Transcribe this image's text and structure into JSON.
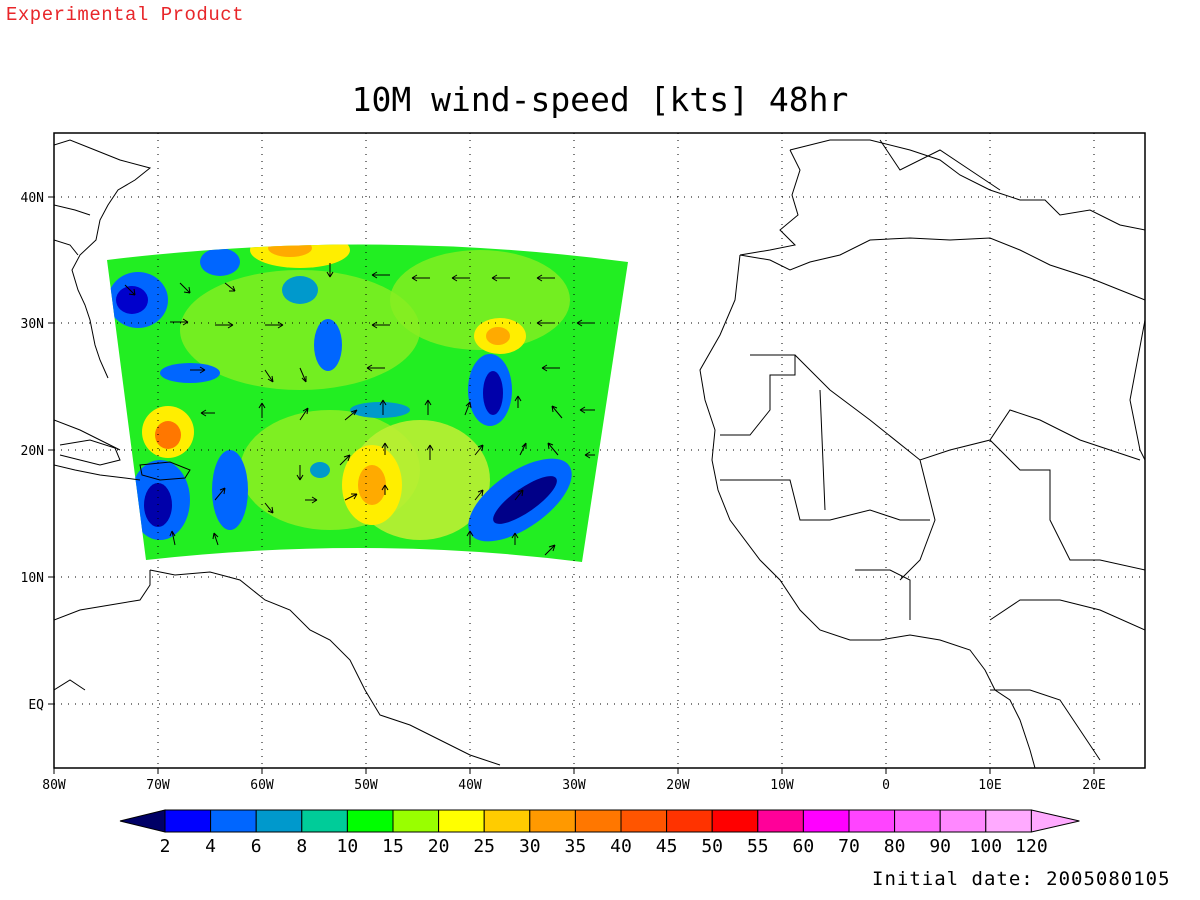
{
  "header": {
    "product_label": "Experimental Product",
    "title": "10M wind-speed [kts] 48hr"
  },
  "footer": {
    "initial_date": "Initial date: 2005080105"
  },
  "map": {
    "lon_ticks": [
      "80W",
      "70W",
      "60W",
      "50W",
      "40W",
      "30W",
      "20W",
      "10W",
      "0",
      "10E",
      "20E"
    ],
    "lat_ticks": [
      "40N",
      "30N",
      "20N",
      "10N",
      "EQ"
    ],
    "grid": "dotted"
  },
  "colorbar": {
    "labels": [
      "2",
      "4",
      "6",
      "8",
      "10",
      "15",
      "20",
      "25",
      "30",
      "35",
      "40",
      "45",
      "50",
      "55",
      "60",
      "70",
      "80",
      "90",
      "100",
      "120"
    ],
    "colors": [
      "#000080",
      "#0000ff",
      "#0066ff",
      "#0099cc",
      "#00cc99",
      "#00ff00",
      "#99ff00",
      "#ffff00",
      "#ffcc00",
      "#ff9900",
      "#ff7700",
      "#ff5500",
      "#ff3300",
      "#ff0000",
      "#ff0099",
      "#ff00ff",
      "#ff44ff",
      "#ff66ff",
      "#ff88ff",
      "#ffaaff"
    ],
    "below_color": "#000066",
    "above_color": "#ffaaff"
  }
}
